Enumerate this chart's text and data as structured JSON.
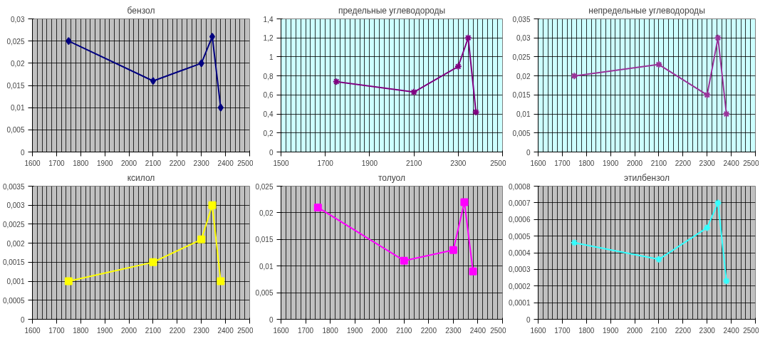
{
  "chart_data": [
    {
      "type": "line",
      "title": "бензол",
      "x": [
        1750,
        2100,
        2300,
        2345,
        2380
      ],
      "series": [
        {
          "color": "#000080",
          "values": [
            0.025,
            0.016,
            0.02,
            0.026,
            0.01
          ]
        }
      ],
      "marker": "diamond",
      "grid": true,
      "xlim": [
        1600,
        2500
      ],
      "xticks": [
        1600,
        1700,
        1800,
        1900,
        2000,
        2100,
        2200,
        2300,
        2400,
        2500
      ],
      "ylim": [
        0,
        0.03
      ],
      "yticks": [
        0,
        {
          "value": 0.005,
          "label": "0,005"
        },
        {
          "value": 0.01,
          "label": "0,01"
        },
        {
          "value": 0.015,
          "label": "0,015"
        },
        {
          "value": 0.02,
          "label": "0,02"
        },
        {
          "value": 0.025,
          "label": "0,025"
        },
        {
          "value": 0.03,
          "label": "0,03"
        }
      ]
    },
    {
      "type": "line",
      "title": "предельные углеводороды",
      "x": [
        1750,
        2100,
        2300,
        2345,
        2380
      ],
      "series": [
        {
          "color": "#800080",
          "values": [
            0.74,
            0.63,
            0.9,
            1.2,
            0.42
          ]
        }
      ],
      "marker": "cross",
      "grid": true,
      "xlim": [
        1500,
        2500
      ],
      "xticks": [
        1500,
        1700,
        1900,
        2100,
        2300,
        2500
      ],
      "ylim": [
        0,
        1.4
      ],
      "yticks": [
        0,
        {
          "value": 0.2,
          "label": "0,2"
        },
        {
          "value": 0.4,
          "label": "0,4"
        },
        {
          "value": 0.6,
          "label": "0,6"
        },
        {
          "value": 0.8,
          "label": "0,8"
        },
        1,
        {
          "value": 1.2,
          "label": "1,2"
        },
        {
          "value": 1.4,
          "label": "1,4"
        }
      ]
    },
    {
      "type": "line",
      "title": "непредельные углеводороды",
      "x": [
        1750,
        2100,
        2300,
        2345,
        2380
      ],
      "series": [
        {
          "color": "#993399",
          "values": [
            0.02,
            0.023,
            0.015,
            0.03,
            0.01
          ]
        }
      ],
      "marker": "cross",
      "grid": true,
      "xlim": [
        1600,
        2500
      ],
      "xticks": [
        1600,
        1700,
        1800,
        1900,
        2000,
        2100,
        2200,
        2300,
        2400,
        2500
      ],
      "ylim": [
        0,
        0.035
      ],
      "yticks": [
        0,
        {
          "value": 0.005,
          "label": "0,005"
        },
        {
          "value": 0.01,
          "label": "0,01"
        },
        {
          "value": 0.015,
          "label": "0,015"
        },
        {
          "value": 0.02,
          "label": "0,02"
        },
        {
          "value": 0.025,
          "label": "0,025"
        },
        {
          "value": 0.03,
          "label": "0,03"
        },
        {
          "value": 0.035,
          "label": "0,035"
        }
      ]
    },
    {
      "type": "line",
      "title": "ксилол",
      "x": [
        1750,
        2100,
        2300,
        2345,
        2380
      ],
      "series": [
        {
          "color": "#ffff00",
          "values": [
            0.001,
            0.0015,
            0.0021,
            0.003,
            0.001
          ]
        }
      ],
      "marker": "square",
      "grid": true,
      "xlim": [
        1600,
        2500
      ],
      "xticks": [
        1600,
        1700,
        1800,
        1900,
        2000,
        2100,
        2200,
        2300,
        2400,
        2500
      ],
      "ylim": [
        0,
        0.0035
      ],
      "yticks": [
        0,
        {
          "value": 0.0005,
          "label": "0,0005"
        },
        {
          "value": 0.001,
          "label": "0,001"
        },
        {
          "value": 0.0015,
          "label": "0,0015"
        },
        {
          "value": 0.002,
          "label": "0,002"
        },
        {
          "value": 0.0025,
          "label": "0,0025"
        },
        {
          "value": 0.003,
          "label": "0,003"
        },
        {
          "value": 0.0035,
          "label": "0,0035"
        }
      ]
    },
    {
      "type": "line",
      "title": "толуол",
      "x": [
        1750,
        2100,
        2300,
        2345,
        2380
      ],
      "series": [
        {
          "color": "#ff00ff",
          "values": [
            0.021,
            0.011,
            0.013,
            0.022,
            0.009
          ]
        }
      ],
      "marker": "square",
      "grid": true,
      "xlim": [
        1600,
        2500
      ],
      "xticks": [
        1600,
        1700,
        1800,
        1900,
        2000,
        2100,
        2200,
        2300,
        2400,
        2500
      ],
      "ylim": [
        0,
        0.025
      ],
      "yticks": [
        0,
        {
          "value": 0.005,
          "label": "0,005"
        },
        {
          "value": 0.01,
          "label": "0,01"
        },
        {
          "value": 0.015,
          "label": "0,015"
        },
        {
          "value": 0.02,
          "label": "0,02"
        },
        {
          "value": 0.025,
          "label": "0,025"
        }
      ]
    },
    {
      "type": "line",
      "title": "этилбензол",
      "x": [
        1750,
        2100,
        2300,
        2345,
        2380
      ],
      "series": [
        {
          "color": "#33ffff",
          "values": [
            0.00046,
            0.00036,
            0.00055,
            0.0007,
            0.00023
          ]
        }
      ],
      "marker": "cross",
      "grid": true,
      "xlim": [
        1600,
        2500
      ],
      "xticks": [
        1600,
        1700,
        1800,
        1900,
        2000,
        2100,
        2200,
        2300,
        2400,
        2500
      ],
      "ylim": [
        0,
        0.0008
      ],
      "yticks": [
        0,
        {
          "value": 0.0001,
          "label": "0,0001"
        },
        {
          "value": 0.0002,
          "label": "0,0002"
        },
        {
          "value": 0.0003,
          "label": "0,0003"
        },
        {
          "value": 0.0004,
          "label": "0,0004"
        },
        {
          "value": 0.0005,
          "label": "0,0005"
        },
        {
          "value": 0.0006,
          "label": "0,0006"
        },
        {
          "value": 0.0007,
          "label": "0,0007"
        },
        {
          "value": 0.0008,
          "label": "0,0008"
        }
      ]
    }
  ]
}
